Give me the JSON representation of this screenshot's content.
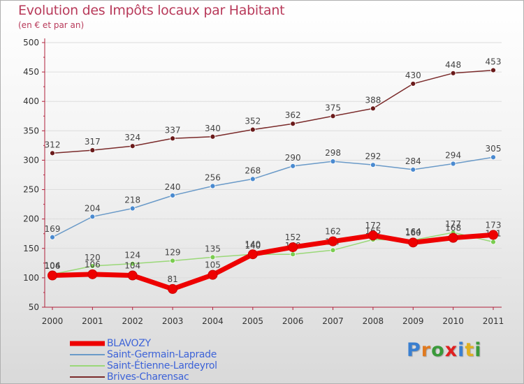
{
  "header": {
    "title": "Evolution des Impôts locaux par Habitant",
    "subtitle": "(en € et par an)"
  },
  "brand": {
    "text": "Proxiti",
    "letter_colors": [
      "#3a7fd0",
      "#e07a20",
      "#3a9a3a",
      "#e02020",
      "#3a7fd0",
      "#e0b020",
      "#3a9a3a"
    ]
  },
  "colors": {
    "axis": "#b0203a",
    "gridline": "#dddddd",
    "tick_text": "#333333",
    "value_label": "#444444"
  },
  "chart_data": {
    "type": "line",
    "title": "Evolution des Impôts locaux par Habitant",
    "subtitle": "(en € et par an)",
    "x": [
      2000,
      2001,
      2002,
      2003,
      2004,
      2005,
      2006,
      2007,
      2008,
      2009,
      2010,
      2011
    ],
    "ylim": [
      50,
      500
    ],
    "yticks": [
      50,
      100,
      150,
      200,
      250,
      300,
      350,
      400,
      450,
      500
    ],
    "grid": "horizontal",
    "legend_position": "bottom-left",
    "series": [
      {
        "name": "Brives-Charensac",
        "color": "#7a2a2a",
        "marker_fill": "#6a1a1a",
        "width": 1.5,
        "values": [
          312,
          317,
          324,
          337,
          340,
          352,
          362,
          375,
          388,
          430,
          448,
          453
        ]
      },
      {
        "name": "Saint-Germain-Laprade",
        "color": "#6a9ac8",
        "marker_fill": "#4a8ad0",
        "width": 1.5,
        "values": [
          169,
          204,
          218,
          240,
          256,
          268,
          290,
          298,
          292,
          284,
          294,
          305
        ]
      },
      {
        "name": "Saint-Étienne-Lardeyrol",
        "color": "#9ad878",
        "marker_fill": "#7acc50",
        "width": 1.5,
        "values": [
          106,
          120,
          124,
          129,
          135,
          140,
          140,
          147,
          165,
          164,
          177,
          161
        ]
      },
      {
        "name": "BLAVOZY",
        "color": "#ee0000",
        "marker_fill": "#ee0000",
        "width": 7,
        "values": [
          104,
          106,
          104,
          81,
          105,
          140,
          152,
          162,
          172,
          160,
          168,
          173
        ]
      }
    ]
  },
  "legend": [
    {
      "label": "BLAVOZY"
    },
    {
      "label": "Saint-Germain-Laprade"
    },
    {
      "label": "Saint-Étienne-Lardeyrol"
    },
    {
      "label": "Brives-Charensac"
    }
  ]
}
